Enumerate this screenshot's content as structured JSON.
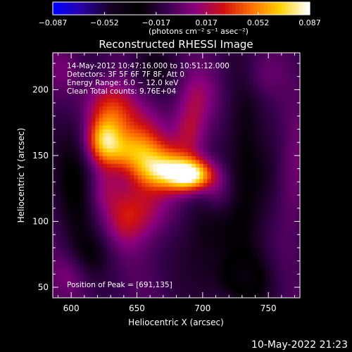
{
  "chart_data": {
    "type": "heatmap",
    "title": "Reconstructed RHESSI Image",
    "xlabel": "Heliocentric X (arcsec)",
    "ylabel": "Heliocentric Y (arcsec)",
    "xlim": [
      586,
      774
    ],
    "ylim": [
      42,
      228
    ],
    "xticks": [
      600,
      650,
      700,
      750
    ],
    "yticks": [
      50,
      100,
      150,
      200
    ],
    "colorbar": {
      "min": -0.087,
      "max": 0.087,
      "tick_values": [
        -0.087,
        -0.052,
        -0.017,
        0.017,
        0.052,
        0.087
      ],
      "tick_labels": [
        "−0.087",
        "−0.052",
        "−0.017",
        "0.017",
        "0.052",
        "0.087"
      ],
      "unit_label": "(photons cm⁻² s⁻¹ asec⁻²)",
      "colormap": [
        "#0000ff",
        "#2a00a0",
        "#160020",
        "#000000",
        "#3a0050",
        "#8a0080",
        "#d01010",
        "#ff7000",
        "#ffd000",
        "#ffffff"
      ]
    },
    "annotations": [
      "14-May-2012 10:47:16.000 to 10:51:12.000",
      "Detectors: 3F 5F 6F 7F 8F, Att 0",
      "Energy Range: 6.0 − 12.0 keV",
      "Clean    Total counts: 9.76E+04"
    ],
    "peak_label": "Position of Peak = [691,135]",
    "peak": {
      "x": 691,
      "y": 135,
      "value": 0.087
    },
    "sources": [
      {
        "x": 691,
        "y": 135,
        "amp": 0.085,
        "sx": 12,
        "sy": 8
      },
      {
        "x": 676,
        "y": 140,
        "amp": 0.045,
        "sx": 16,
        "sy": 11
      },
      {
        "x": 645,
        "y": 152,
        "amp": 0.05,
        "sx": 17,
        "sy": 10
      },
      {
        "x": 625,
        "y": 162,
        "amp": 0.052,
        "sx": 9,
        "sy": 11
      },
      {
        "x": 662,
        "y": 138,
        "amp": 0.03,
        "sx": 12,
        "sy": 9
      },
      {
        "x": 632,
        "y": 175,
        "amp": 0.038,
        "sx": 14,
        "sy": 14
      },
      {
        "x": 628,
        "y": 192,
        "amp": 0.025,
        "sx": 14,
        "sy": 12
      },
      {
        "x": 655,
        "y": 165,
        "amp": 0.022,
        "sx": 12,
        "sy": 12
      },
      {
        "x": 690,
        "y": 168,
        "amp": 0.03,
        "sx": 9,
        "sy": 14
      },
      {
        "x": 695,
        "y": 195,
        "amp": 0.022,
        "sx": 10,
        "sy": 14
      },
      {
        "x": 655,
        "y": 112,
        "amp": 0.032,
        "sx": 14,
        "sy": 18
      },
      {
        "x": 640,
        "y": 100,
        "amp": 0.018,
        "sx": 10,
        "sy": 14
      },
      {
        "x": 712,
        "y": 122,
        "amp": 0.02,
        "sx": 9,
        "sy": 12
      },
      {
        "x": 625,
        "y": 125,
        "amp": 0.018,
        "sx": 9,
        "sy": 14
      },
      {
        "x": 745,
        "y": 210,
        "amp": 0.012,
        "sx": 10,
        "sy": 12
      },
      {
        "x": 768,
        "y": 130,
        "amp": 0.014,
        "sx": 8,
        "sy": 30
      },
      {
        "x": 598,
        "y": 60,
        "amp": 0.012,
        "sx": 10,
        "sy": 12
      },
      {
        "x": 596,
        "y": 215,
        "amp": 0.012,
        "sx": 9,
        "sy": 12
      },
      {
        "x": 745,
        "y": 170,
        "amp": 0.01,
        "sx": 8,
        "sy": 20
      }
    ],
    "negative_regions": [
      {
        "x": 605,
        "y": 140,
        "amp": -0.022,
        "sx": 12,
        "sy": 40
      },
      {
        "x": 735,
        "y": 140,
        "amp": -0.025,
        "sx": 14,
        "sy": 50
      },
      {
        "x": 700,
        "y": 90,
        "amp": -0.018,
        "sx": 14,
        "sy": 30
      },
      {
        "x": 660,
        "y": 215,
        "amp": -0.015,
        "sx": 12,
        "sy": 14
      },
      {
        "x": 615,
        "y": 75,
        "amp": -0.012,
        "sx": 12,
        "sy": 12
      },
      {
        "x": 730,
        "y": 55,
        "amp": -0.018,
        "sx": 18,
        "sy": 14
      }
    ]
  },
  "footer": {
    "date_stamp": "10-May-2022 21:23"
  }
}
